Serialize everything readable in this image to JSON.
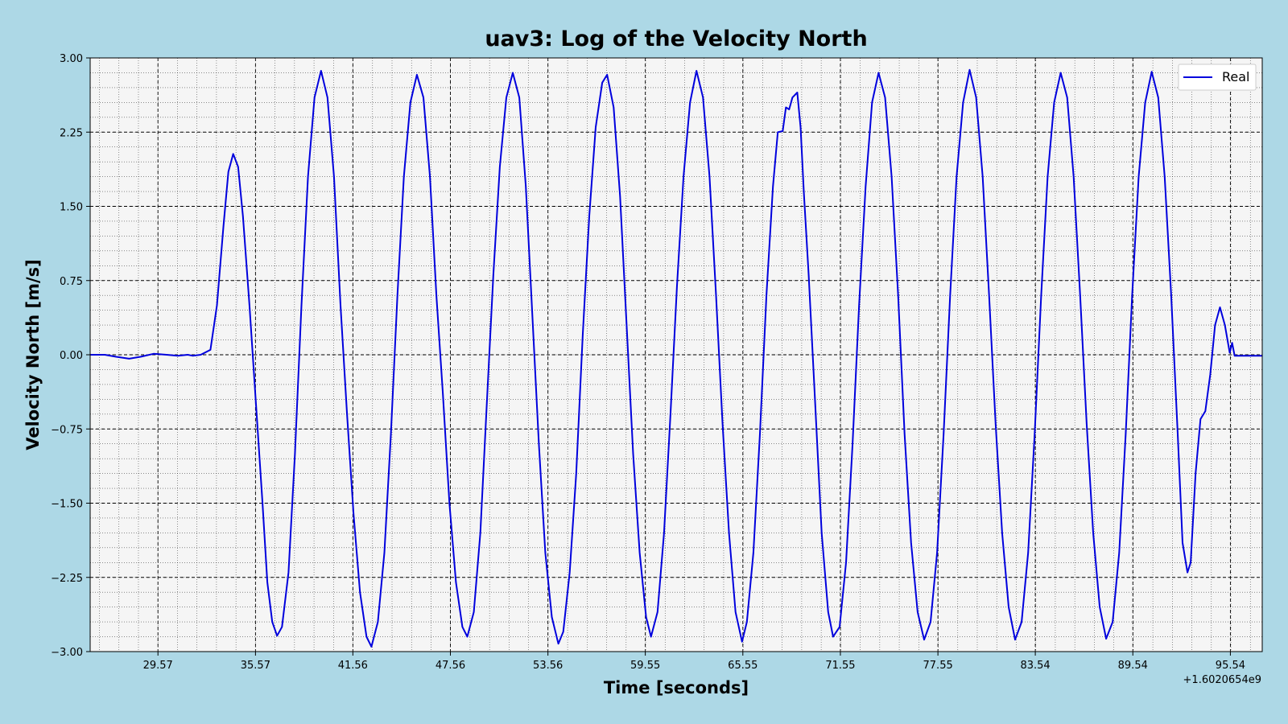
{
  "chart_data": {
    "type": "line",
    "title": "uav3: Log of the Velocity North",
    "xlabel": "Time [seconds]",
    "ylabel": "Velocity North [m/s]",
    "x_offset_label": "+1.6020654e9",
    "xlim": [
      25.4,
      97.5
    ],
    "ylim": [
      -3.0,
      3.0
    ],
    "x_ticks": [
      29.57,
      35.57,
      41.56,
      47.56,
      53.56,
      59.55,
      65.55,
      71.55,
      77.55,
      83.54,
      89.54,
      95.54
    ],
    "x_tick_labels": [
      "29.57",
      "35.57",
      "41.56",
      "47.56",
      "53.56",
      "59.55",
      "65.55",
      "71.55",
      "77.55",
      "83.54",
      "89.54",
      "95.54"
    ],
    "y_ticks": [
      -3.0,
      -2.25,
      -1.5,
      -0.75,
      0.0,
      0.75,
      1.5,
      2.25,
      3.0
    ],
    "y_tick_labels": [
      "−3.00",
      "−2.25",
      "−1.50",
      "−0.75",
      "0.00",
      "0.75",
      "1.50",
      "2.25",
      "3.00"
    ],
    "grid": true,
    "minor_grid": true,
    "legend_position": "top-right",
    "background_color": "#add8e6",
    "plot_background_color": "#f5f5f5",
    "series": [
      {
        "name": "Real",
        "color": "#0000dd",
        "points": [
          [
            25.4,
            0.0
          ],
          [
            26.3,
            0.0
          ],
          [
            27.0,
            -0.02
          ],
          [
            27.8,
            -0.04
          ],
          [
            28.5,
            -0.02
          ],
          [
            29.3,
            0.01
          ],
          [
            30.1,
            0.0
          ],
          [
            30.8,
            -0.01
          ],
          [
            31.4,
            0.0
          ],
          [
            31.7,
            -0.01
          ],
          [
            32.2,
            0.0
          ],
          [
            32.8,
            0.05
          ],
          [
            33.2,
            0.5
          ],
          [
            33.6,
            1.3
          ],
          [
            33.9,
            1.85
          ],
          [
            34.2,
            2.03
          ],
          [
            34.5,
            1.9
          ],
          [
            34.8,
            1.4
          ],
          [
            35.2,
            0.5
          ],
          [
            35.6,
            -0.5
          ],
          [
            36.0,
            -1.5
          ],
          [
            36.3,
            -2.3
          ],
          [
            36.6,
            -2.7
          ],
          [
            36.9,
            -2.84
          ],
          [
            37.2,
            -2.75
          ],
          [
            37.6,
            -2.2
          ],
          [
            38.0,
            -1.0
          ],
          [
            38.4,
            0.5
          ],
          [
            38.8,
            1.8
          ],
          [
            39.2,
            2.6
          ],
          [
            39.6,
            2.87
          ],
          [
            40.0,
            2.6
          ],
          [
            40.4,
            1.8
          ],
          [
            40.8,
            0.5
          ],
          [
            41.2,
            -0.6
          ],
          [
            41.6,
            -1.6
          ],
          [
            42.0,
            -2.4
          ],
          [
            42.4,
            -2.85
          ],
          [
            42.7,
            -2.95
          ],
          [
            43.1,
            -2.7
          ],
          [
            43.5,
            -2.0
          ],
          [
            43.9,
            -0.8
          ],
          [
            44.3,
            0.6
          ],
          [
            44.7,
            1.8
          ],
          [
            45.1,
            2.55
          ],
          [
            45.5,
            2.83
          ],
          [
            45.9,
            2.6
          ],
          [
            46.3,
            1.8
          ],
          [
            46.7,
            0.6
          ],
          [
            47.1,
            -0.4
          ],
          [
            47.5,
            -1.5
          ],
          [
            47.9,
            -2.3
          ],
          [
            48.3,
            -2.75
          ],
          [
            48.6,
            -2.85
          ],
          [
            49.0,
            -2.6
          ],
          [
            49.4,
            -1.8
          ],
          [
            49.8,
            -0.5
          ],
          [
            50.2,
            0.8
          ],
          [
            50.6,
            1.9
          ],
          [
            51.0,
            2.6
          ],
          [
            51.4,
            2.85
          ],
          [
            51.8,
            2.6
          ],
          [
            52.2,
            1.7
          ],
          [
            52.6,
            0.4
          ],
          [
            53.0,
            -0.9
          ],
          [
            53.4,
            -2.0
          ],
          [
            53.8,
            -2.65
          ],
          [
            54.2,
            -2.92
          ],
          [
            54.5,
            -2.8
          ],
          [
            54.9,
            -2.2
          ],
          [
            55.3,
            -1.2
          ],
          [
            55.7,
            0.2
          ],
          [
            56.1,
            1.4
          ],
          [
            56.5,
            2.3
          ],
          [
            56.9,
            2.75
          ],
          [
            57.2,
            2.83
          ],
          [
            57.6,
            2.5
          ],
          [
            58.0,
            1.6
          ],
          [
            58.4,
            0.3
          ],
          [
            58.8,
            -1.0
          ],
          [
            59.2,
            -2.0
          ],
          [
            59.6,
            -2.65
          ],
          [
            59.9,
            -2.85
          ],
          [
            60.3,
            -2.6
          ],
          [
            60.7,
            -1.8
          ],
          [
            61.1,
            -0.6
          ],
          [
            61.5,
            0.7
          ],
          [
            61.9,
            1.8
          ],
          [
            62.3,
            2.55
          ],
          [
            62.7,
            2.87
          ],
          [
            63.1,
            2.6
          ],
          [
            63.5,
            1.8
          ],
          [
            63.9,
            0.6
          ],
          [
            64.3,
            -0.7
          ],
          [
            64.7,
            -1.8
          ],
          [
            65.1,
            -2.6
          ],
          [
            65.5,
            -2.9
          ],
          [
            65.8,
            -2.7
          ],
          [
            66.2,
            -2.0
          ],
          [
            66.6,
            -0.8
          ],
          [
            67.0,
            0.6
          ],
          [
            67.4,
            1.7
          ],
          [
            67.7,
            2.25
          ],
          [
            68.0,
            2.26
          ],
          [
            68.2,
            2.5
          ],
          [
            68.4,
            2.48
          ],
          [
            68.6,
            2.6
          ],
          [
            68.9,
            2.65
          ],
          [
            69.1,
            2.3
          ],
          [
            69.3,
            1.65
          ],
          [
            69.6,
            0.8
          ],
          [
            70.0,
            -0.5
          ],
          [
            70.4,
            -1.8
          ],
          [
            70.8,
            -2.6
          ],
          [
            71.1,
            -2.85
          ],
          [
            71.5,
            -2.75
          ],
          [
            71.9,
            -2.1
          ],
          [
            72.3,
            -0.9
          ],
          [
            72.7,
            0.5
          ],
          [
            73.1,
            1.7
          ],
          [
            73.5,
            2.55
          ],
          [
            73.9,
            2.85
          ],
          [
            74.3,
            2.6
          ],
          [
            74.7,
            1.8
          ],
          [
            75.1,
            0.6
          ],
          [
            75.5,
            -0.8
          ],
          [
            75.9,
            -1.9
          ],
          [
            76.3,
            -2.6
          ],
          [
            76.7,
            -2.88
          ],
          [
            77.1,
            -2.7
          ],
          [
            77.5,
            -2.0
          ],
          [
            77.9,
            -0.8
          ],
          [
            78.3,
            0.6
          ],
          [
            78.7,
            1.8
          ],
          [
            79.1,
            2.55
          ],
          [
            79.5,
            2.88
          ],
          [
            79.9,
            2.6
          ],
          [
            80.3,
            1.8
          ],
          [
            80.7,
            0.6
          ],
          [
            81.1,
            -0.7
          ],
          [
            81.5,
            -1.8
          ],
          [
            81.9,
            -2.55
          ],
          [
            82.3,
            -2.88
          ],
          [
            82.7,
            -2.7
          ],
          [
            83.1,
            -2.0
          ],
          [
            83.5,
            -0.8
          ],
          [
            83.9,
            0.6
          ],
          [
            84.3,
            1.8
          ],
          [
            84.7,
            2.55
          ],
          [
            85.1,
            2.85
          ],
          [
            85.5,
            2.6
          ],
          [
            85.9,
            1.8
          ],
          [
            86.3,
            0.6
          ],
          [
            86.7,
            -0.7
          ],
          [
            87.1,
            -1.8
          ],
          [
            87.5,
            -2.55
          ],
          [
            87.9,
            -2.87
          ],
          [
            88.3,
            -2.7
          ],
          [
            88.7,
            -2.0
          ],
          [
            89.1,
            -0.8
          ],
          [
            89.5,
            0.6
          ],
          [
            89.9,
            1.8
          ],
          [
            90.3,
            2.55
          ],
          [
            90.7,
            2.86
          ],
          [
            91.1,
            2.6
          ],
          [
            91.5,
            1.8
          ],
          [
            91.9,
            0.6
          ],
          [
            92.3,
            -0.8
          ],
          [
            92.6,
            -1.9
          ],
          [
            92.9,
            -2.2
          ],
          [
            93.1,
            -2.1
          ],
          [
            93.4,
            -1.2
          ],
          [
            93.7,
            -0.65
          ],
          [
            94.0,
            -0.57
          ],
          [
            94.3,
            -0.2
          ],
          [
            94.6,
            0.3
          ],
          [
            94.9,
            0.48
          ],
          [
            95.2,
            0.3
          ],
          [
            95.5,
            0.02
          ],
          [
            95.65,
            0.12
          ],
          [
            95.8,
            -0.01
          ],
          [
            96.1,
            -0.01
          ],
          [
            96.6,
            -0.01
          ],
          [
            97.5,
            -0.01
          ]
        ]
      }
    ]
  }
}
